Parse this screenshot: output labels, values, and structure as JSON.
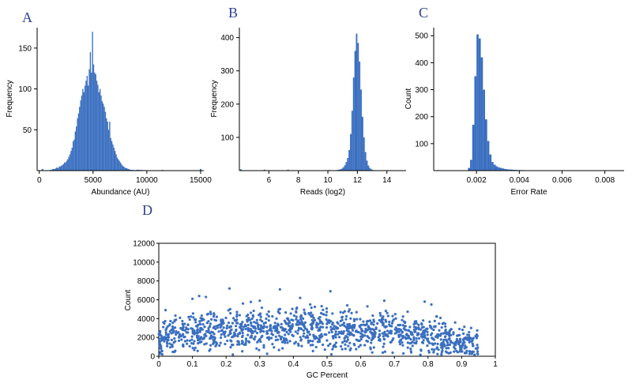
{
  "colors": {
    "bar": "#3a6fc0",
    "point": "#3a6fc0",
    "accent": "#e07020"
  },
  "chart_data": [
    {
      "panel": "A",
      "type": "bar",
      "subtype": "histogram",
      "xlabel": "Abundance (AU)",
      "ylabel": "Frequency",
      "xlim": [
        -200,
        15300
      ],
      "ylim": [
        0,
        175
      ],
      "xticks": [
        0,
        5000,
        10000,
        15000
      ],
      "xtick_labels": [
        "0",
        "5000",
        "10000",
        "15000"
      ],
      "yticks": [
        50,
        100,
        150
      ],
      "ytick_labels": [
        "50",
        "100",
        "150"
      ],
      "bin_start": 1000,
      "bin_width": 100,
      "values": [
        1,
        1,
        2,
        2,
        2,
        3,
        4,
        3,
        5,
        5,
        6,
        7,
        8,
        10,
        10,
        12,
        14,
        17,
        20,
        24,
        28,
        36,
        38,
        48,
        54,
        64,
        70,
        78,
        86,
        92,
        100,
        96,
        104,
        110,
        116,
        104,
        124,
        145,
        120,
        170,
        130,
        120,
        118,
        110,
        105,
        96,
        100,
        92,
        85,
        82,
        78,
        72,
        64,
        60,
        50,
        60,
        40,
        36,
        32,
        28,
        24,
        20,
        16,
        14,
        12,
        10,
        8,
        6,
        5,
        4,
        3,
        3,
        2,
        2,
        1,
        1,
        1,
        0,
        1,
        0,
        1,
        1,
        1,
        1,
        0,
        1,
        0,
        0,
        0,
        0,
        0,
        0,
        0,
        0,
        0,
        0,
        0,
        0,
        0,
        0,
        0,
        0,
        0,
        0,
        1
      ],
      "baseline_bumps": [
        [
          300,
          2
        ],
        [
          15000,
          2
        ]
      ]
    },
    {
      "panel": "B",
      "type": "bar",
      "subtype": "histogram",
      "xlabel": "Reads (log2)",
      "ylabel": "Frequency",
      "xlim": [
        4,
        15.3
      ],
      "ylim": [
        0,
        430
      ],
      "xticks": [
        6,
        8,
        10,
        12,
        14
      ],
      "xtick_labels": [
        "6",
        "8",
        "10",
        "12",
        "14"
      ],
      "yticks": [
        100,
        200,
        300,
        400
      ],
      "ytick_labels": [
        "100",
        "200",
        "300",
        "400"
      ],
      "bin_start": 10.6,
      "bin_width": 0.1,
      "values": [
        2,
        3,
        4,
        6,
        10,
        16,
        26,
        38,
        62,
        110,
        180,
        280,
        360,
        412,
        384,
        328,
        244,
        162,
        100,
        56,
        30,
        15,
        8,
        4,
        2
      ],
      "baseline_bumps": [
        [
          4.1,
          4
        ],
        [
          5.7,
          3
        ],
        [
          7.3,
          3
        ],
        [
          10.1,
          2
        ]
      ]
    },
    {
      "panel": "C",
      "type": "bar",
      "subtype": "histogram",
      "xlabel": "Error Rate",
      "ylabel": "Count",
      "xlim": [
        0,
        0.0089
      ],
      "ylim": [
        0,
        530
      ],
      "xticks": [
        0.002,
        0.004,
        0.006,
        0.008
      ],
      "xtick_labels": [
        "0.002",
        "0.004",
        "0.006",
        "0.008"
      ],
      "yticks": [
        100,
        200,
        300,
        400,
        500
      ],
      "ytick_labels": [
        "100",
        "200",
        "300",
        "400",
        "500"
      ],
      "bin_start": 0.0016,
      "bin_width": 0.0001,
      "values": [
        10,
        40,
        170,
        350,
        505,
        490,
        420,
        300,
        190,
        110,
        60,
        32,
        22,
        16,
        12,
        10,
        8,
        6,
        5,
        4,
        4,
        3,
        3,
        2,
        2,
        2,
        1,
        1,
        1,
        1,
        1,
        1,
        1,
        1,
        1,
        1,
        1,
        1,
        1,
        1,
        1,
        1,
        1,
        1,
        1,
        1,
        1,
        1,
        1,
        1,
        1,
        1,
        1,
        1,
        1,
        1,
        1,
        1,
        1,
        1,
        1,
        1,
        1,
        1,
        1,
        1,
        1
      ],
      "baseline_bumps": [
        [
          0.0002,
          2
        ]
      ]
    },
    {
      "panel": "D",
      "type": "scatter",
      "xlabel": "GC Percent",
      "ylabel": "Count",
      "xlim": [
        0,
        1
      ],
      "ylim": [
        0,
        12000
      ],
      "xticks": [
        0,
        0.1,
        0.2,
        0.3,
        0.4,
        0.5,
        0.6,
        0.7,
        0.8,
        0.9,
        1
      ],
      "xtick_labels": [
        "0",
        "0.1",
        "0.2",
        "0.3",
        "0.4",
        "0.5",
        "0.6",
        "0.7",
        "0.8",
        "0.9",
        "1"
      ],
      "yticks": [
        0,
        2000,
        4000,
        6000,
        8000,
        10000,
        12000
      ],
      "ytick_labels": [
        "0",
        "2000",
        "4000",
        "6000",
        "8000",
        "10000",
        "12000"
      ],
      "density_profile": {
        "x_range": [
          0.0,
          0.95
        ],
        "center_y": [
          [
            0.0,
            1800
          ],
          [
            0.1,
            2600
          ],
          [
            0.2,
            2800
          ],
          [
            0.35,
            2900
          ],
          [
            0.5,
            2800
          ],
          [
            0.6,
            2700
          ],
          [
            0.7,
            2600
          ],
          [
            0.8,
            2300
          ],
          [
            0.9,
            1500
          ],
          [
            0.95,
            900
          ]
        ],
        "spread_y": 1000,
        "n_points": 1300
      },
      "outliers": [
        [
          0.02,
          4900
        ],
        [
          0.1,
          6100
        ],
        [
          0.12,
          6400
        ],
        [
          0.14,
          6300
        ],
        [
          0.21,
          7200
        ],
        [
          0.3,
          5900
        ],
        [
          0.36,
          7100
        ],
        [
          0.42,
          6200
        ],
        [
          0.51,
          6900
        ],
        [
          0.56,
          5400
        ],
        [
          0.67,
          5900
        ],
        [
          0.79,
          5800
        ],
        [
          0.81,
          5500
        ],
        [
          0.45,
          5500
        ],
        [
          0.25,
          5600
        ],
        [
          0.62,
          5300
        ]
      ]
    }
  ]
}
